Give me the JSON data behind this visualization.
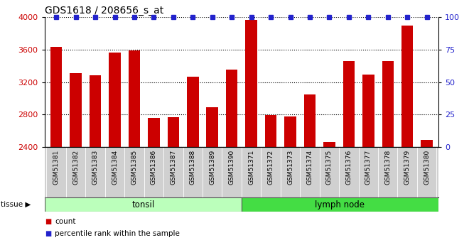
{
  "title": "GDS1618 / 208656_s_at",
  "categories": [
    "GSM51381",
    "GSM51382",
    "GSM51383",
    "GSM51384",
    "GSM51385",
    "GSM51386",
    "GSM51387",
    "GSM51388",
    "GSM51389",
    "GSM51390",
    "GSM51371",
    "GSM51372",
    "GSM51373",
    "GSM51374",
    "GSM51375",
    "GSM51376",
    "GSM51377",
    "GSM51378",
    "GSM51379",
    "GSM51380"
  ],
  "counts": [
    3635,
    3310,
    3285,
    3560,
    3590,
    2755,
    2770,
    3265,
    2890,
    3355,
    3970,
    2790,
    2775,
    3045,
    2465,
    3455,
    3290,
    3455,
    3895,
    2490
  ],
  "percentiles": [
    100,
    100,
    100,
    100,
    100,
    100,
    100,
    100,
    100,
    100,
    100,
    100,
    100,
    100,
    100,
    100,
    100,
    100,
    100,
    100
  ],
  "tonsil_count": 10,
  "lymph_count": 10,
  "ylim_left": [
    2400,
    4000
  ],
  "ylim_right": [
    0,
    100
  ],
  "yticks_left": [
    2400,
    2800,
    3200,
    3600,
    4000
  ],
  "yticks_right": [
    0,
    25,
    50,
    75,
    100
  ],
  "bar_color": "#cc0000",
  "dot_color": "#2222cc",
  "tonsil_color": "#bbffbb",
  "lymph_color": "#44dd44",
  "cell_bg": "#d0d0d0",
  "plot_bg": "#ffffff",
  "grid_color": "#000000",
  "left_label_color": "#cc0000",
  "right_label_color": "#2222cc",
  "fig_width": 6.6,
  "fig_height": 3.45,
  "dpi": 100
}
